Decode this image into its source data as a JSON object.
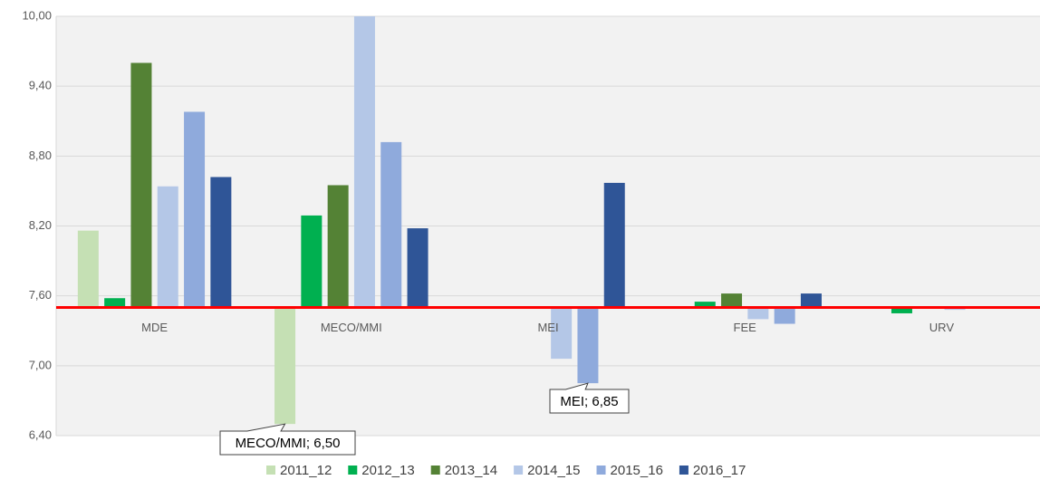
{
  "chart_data": {
    "type": "bar",
    "categories": [
      "MDE",
      "MECO/MMI",
      "MEI",
      "FEE",
      "URV"
    ],
    "series": [
      {
        "name": "2011_12",
        "color": "#c5e0b4",
        "values": [
          8.16,
          6.5,
          null,
          7.51,
          7.5
        ]
      },
      {
        "name": "2012_13",
        "color": "#00b050",
        "values": [
          7.58,
          8.29,
          null,
          7.55,
          7.45
        ]
      },
      {
        "name": "2013_14",
        "color": "#548235",
        "values": [
          9.6,
          8.55,
          null,
          7.62,
          7.5
        ]
      },
      {
        "name": "2014_15",
        "color": "#b4c7e7",
        "values": [
          8.54,
          10.0,
          7.06,
          7.4,
          7.48
        ]
      },
      {
        "name": "2015_16",
        "color": "#8faadc",
        "values": [
          9.18,
          8.92,
          6.85,
          7.36,
          7.49
        ]
      },
      {
        "name": "2016_17",
        "color": "#2f5597",
        "values": [
          8.62,
          8.18,
          8.57,
          7.62,
          7.5
        ]
      }
    ],
    "ylim": [
      6.4,
      10.0
    ],
    "yticks": [
      {
        "value": 6.4,
        "label": "6,40"
      },
      {
        "value": 7.0,
        "label": "7,00"
      },
      {
        "value": 7.6,
        "label": "7,60"
      },
      {
        "value": 8.2,
        "label": "8,20"
      },
      {
        "value": 8.8,
        "label": "8,80"
      },
      {
        "value": 9.4,
        "label": "9,40"
      },
      {
        "value": 10.0,
        "label": "10,00"
      }
    ],
    "grid": true,
    "reference_line": {
      "value": 7.5,
      "color": "#ff0000"
    },
    "annotations": [
      "MECO/MMI; 6,50",
      "MEI; 6,85"
    ],
    "legend": "bottom"
  }
}
